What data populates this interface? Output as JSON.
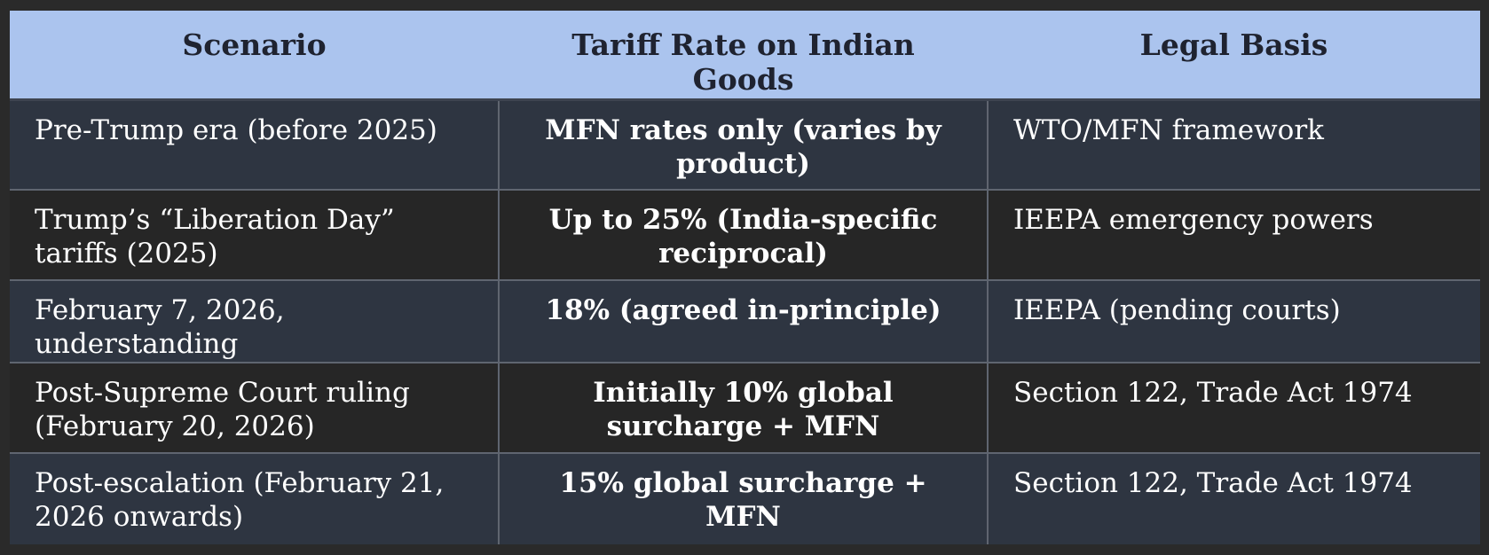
{
  "table": {
    "headers": [
      "Scenario",
      "Tariff Rate on Indian Goods",
      "Legal Basis"
    ],
    "rows": [
      {
        "scenario": "Pre-Trump era (before 2025)",
        "tariff_rate": "MFN rates only (varies by product)",
        "legal_basis": "WTO/MFN framework"
      },
      {
        "scenario": "Trump’s “Liberation Day” tariffs (2025)",
        "tariff_rate": "Up to 25% (India-specific reciprocal)",
        "legal_basis": "IEEPA emergency powers"
      },
      {
        "scenario": "February 7, 2026, understanding",
        "tariff_rate": "18% (agreed in-principle)",
        "legal_basis": "IEEPA (pending courts)"
      },
      {
        "scenario": "Post-Supreme Court ruling (February 20, 2026)",
        "tariff_rate": "Initially 10% global surcharge + MFN",
        "legal_basis": "Section 122, Trade Act 1974"
      },
      {
        "scenario": "Post-escalation (February 21, 2026 onwards)",
        "tariff_rate": "15% global surcharge + MFN",
        "legal_basis": "Section 122, Trade Act 1974"
      }
    ]
  }
}
